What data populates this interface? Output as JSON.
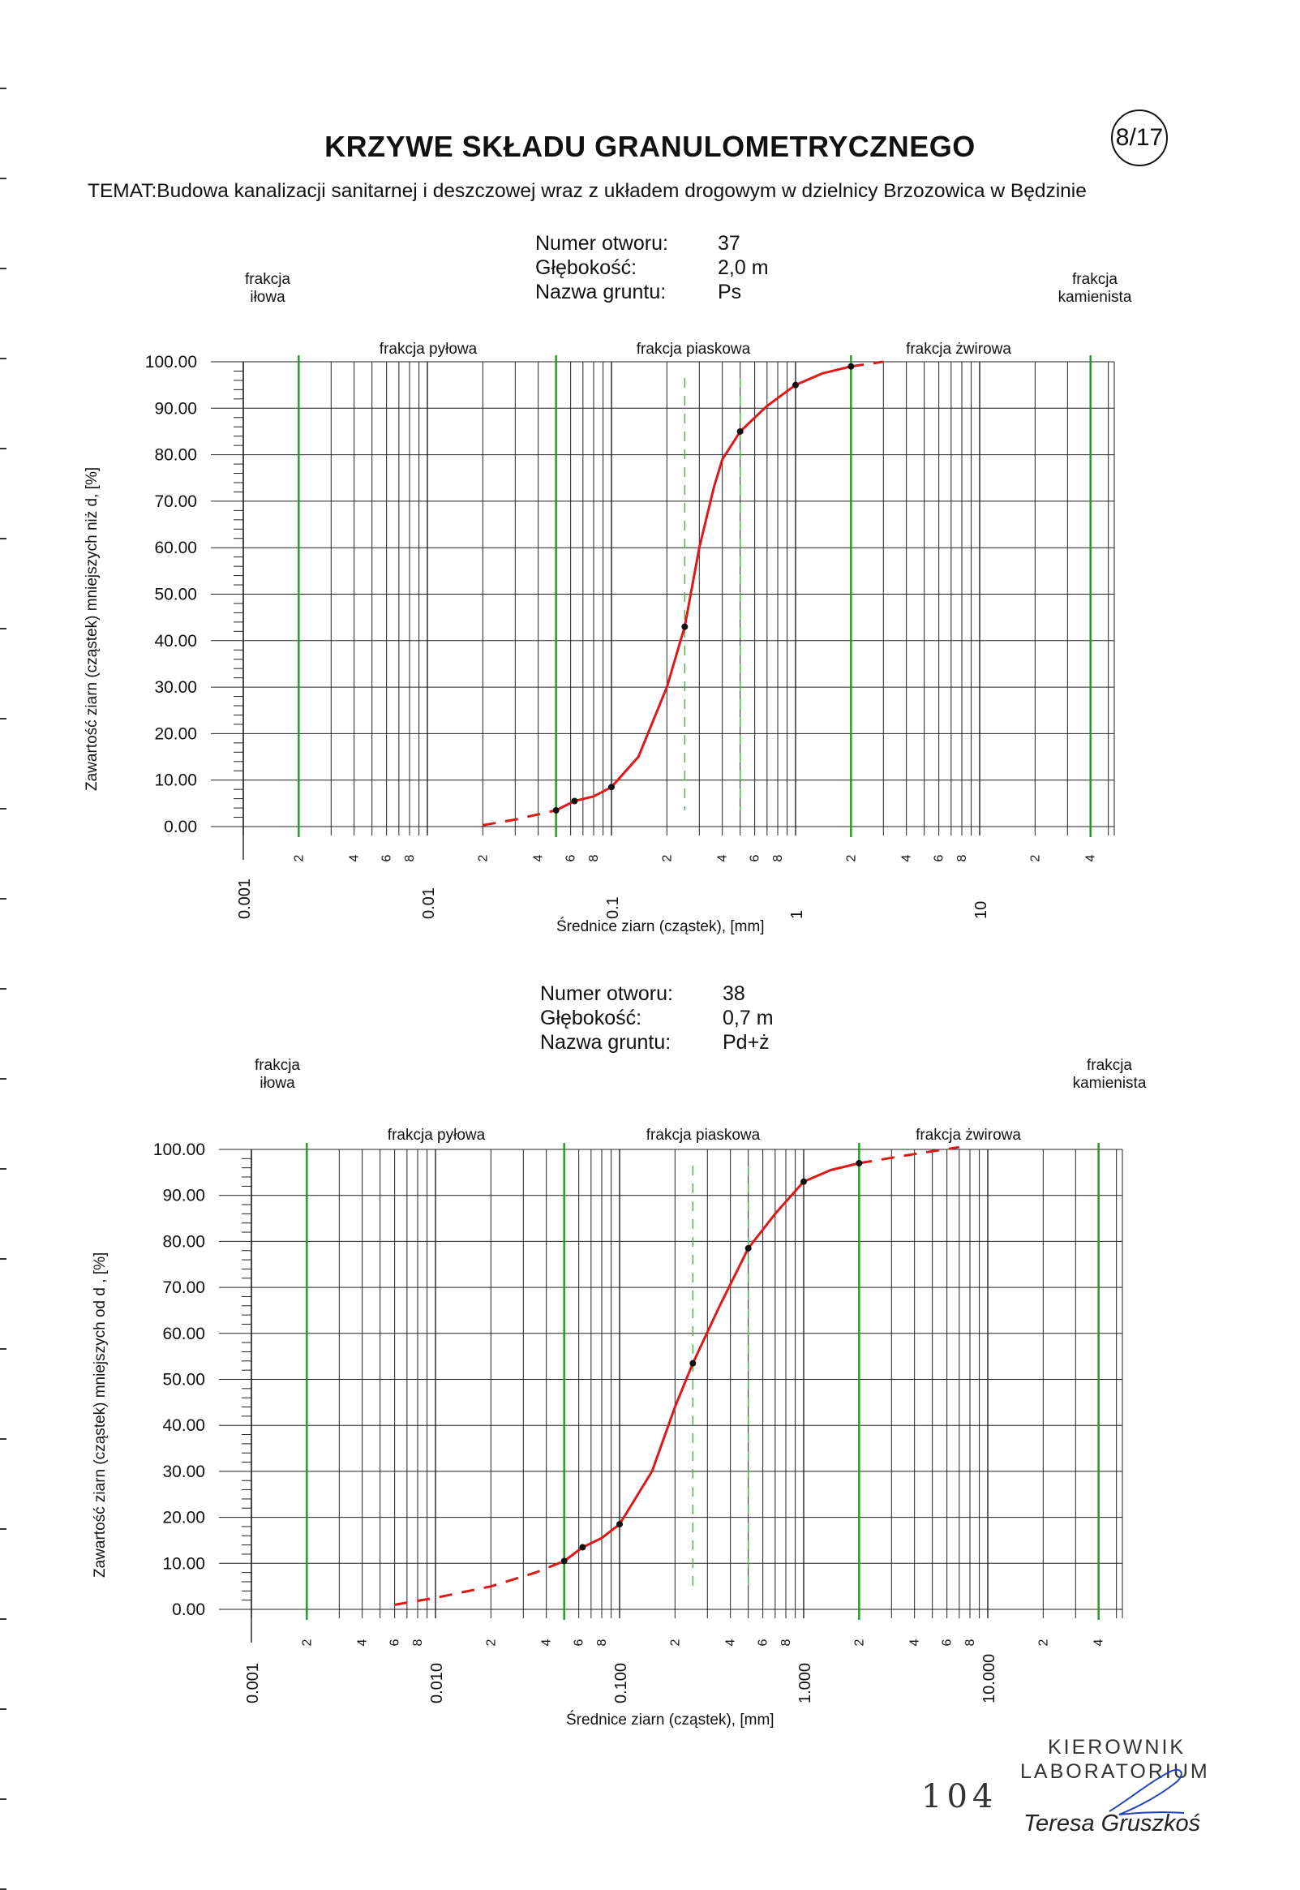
{
  "header": {
    "title": "KRZYWE SKŁADU GRANULOMETRYCZNEGO",
    "page_badge": "8/17",
    "subject": "TEMAT:Budowa kanalizacji sanitarnej i deszczowej wraz z układem drogowym w dzielnicy Brzozowica w Będzinie"
  },
  "samples": [
    {
      "meta": {
        "borehole_label": "Numer otworu:",
        "borehole_value": "37",
        "depth_label": "Głębokość:",
        "depth_value": "2,0 m",
        "soil_label": "Nazwa gruntu:",
        "soil_value": "Ps"
      },
      "ylabel": "Zawartość ziarn (cząstek) mniejszych niż d, [%]",
      "xlabel": "Średnice ziarn (cząstek), [mm]",
      "decade_labels": [
        "0.001",
        "0.01",
        "0.1",
        "1",
        "10"
      ],
      "fractions": [
        "frakcja iłowa",
        "frakcja pyłowa",
        "frakcja piaskowa",
        "frakcja żwirowa",
        "frakcja kamienista"
      ]
    },
    {
      "meta": {
        "borehole_label": "Numer otworu:",
        "borehole_value": "38",
        "depth_label": "Głębokość:",
        "depth_value": "0,7 m",
        "soil_label": "Nazwa gruntu:",
        "soil_value": "Pd+ż"
      },
      "ylabel": "Zawartość ziarn (cząstek) mniejszych od d , [%]",
      "xlabel": "Średnice ziarn (cząstek), [mm]",
      "decade_labels": [
        "0.001",
        "0.010",
        "0.100",
        "1.000",
        "10.000"
      ],
      "fractions": [
        "frakcja iłowa",
        "frakcja pyłowa",
        "frakcja piaskowa",
        "frakcja żwirowa",
        "frakcja kamienista"
      ]
    }
  ],
  "chart_data": [
    {
      "type": "line",
      "title": "",
      "xlabel": "Średnice ziarn (cząstek), [mm]",
      "ylabel": "Zawartość ziarn (cząstek) mniejszych niż d, [%]",
      "x_scale": "log",
      "xlim": [
        0.001,
        50
      ],
      "ylim": [
        0,
        100
      ],
      "yticks": [
        "0.00",
        "10.00",
        "20.00",
        "30.00",
        "40.00",
        "50.00",
        "60.00",
        "70.00",
        "80.00",
        "90.00",
        "100.00"
      ],
      "minor_tick_labels": [
        "2",
        "4",
        "6",
        "8"
      ],
      "grid": true,
      "fraction_boundaries_mm": [
        0.002,
        0.05,
        2,
        40
      ],
      "sand_subdivisions_mm": [
        0.25,
        0.5
      ],
      "series": [
        {
          "points": [
            [
              0.05,
              3.5
            ],
            [
              0.063,
              5.5
            ],
            [
              0.1,
              8.5
            ],
            [
              0.25,
              43
            ],
            [
              0.5,
              85
            ],
            [
              1,
              95
            ],
            [
              2,
              99
            ]
          ],
          "curve": [
            [
              0.02,
              0.3
            ],
            [
              0.03,
              1.5
            ],
            [
              0.05,
              3.5
            ],
            [
              0.063,
              5.5
            ],
            [
              0.08,
              6.5
            ],
            [
              0.1,
              8.5
            ],
            [
              0.14,
              15
            ],
            [
              0.2,
              30
            ],
            [
              0.25,
              43
            ],
            [
              0.3,
              60
            ],
            [
              0.36,
              73
            ],
            [
              0.4,
              79
            ],
            [
              0.5,
              85
            ],
            [
              0.7,
              90.5
            ],
            [
              1,
              95
            ],
            [
              1.4,
              97.5
            ],
            [
              2,
              99
            ],
            [
              3,
              100
            ]
          ],
          "dashed_below_mm": 0.05,
          "dashed_above_mm": 2
        }
      ]
    },
    {
      "type": "line",
      "title": "",
      "xlabel": "Średnice ziarn (cząstek), [mm]",
      "ylabel": "Zawartość ziarn (cząstek) mniejszych od d , [%]",
      "x_scale": "log",
      "xlim": [
        0.001,
        50
      ],
      "ylim": [
        0,
        100
      ],
      "yticks": [
        "0.00",
        "10.00",
        "20.00",
        "30.00",
        "40.00",
        "50.00",
        "60.00",
        "70.00",
        "80.00",
        "90.00",
        "100.00"
      ],
      "minor_tick_labels": [
        "2",
        "4",
        "6",
        "8"
      ],
      "grid": true,
      "fraction_boundaries_mm": [
        0.002,
        0.05,
        2,
        40
      ],
      "sand_subdivisions_mm": [
        0.25,
        0.5
      ],
      "series": [
        {
          "points": [
            [
              0.05,
              10.5
            ],
            [
              0.063,
              13.5
            ],
            [
              0.1,
              18.5
            ],
            [
              0.25,
              53.5
            ],
            [
              0.5,
              78.5
            ],
            [
              1,
              93
            ],
            [
              2,
              97
            ]
          ],
          "curve": [
            [
              0.006,
              1
            ],
            [
              0.01,
              2.5
            ],
            [
              0.02,
              5
            ],
            [
              0.035,
              8
            ],
            [
              0.05,
              10.5
            ],
            [
              0.063,
              13.5
            ],
            [
              0.08,
              15.5
            ],
            [
              0.1,
              18.5
            ],
            [
              0.15,
              30
            ],
            [
              0.2,
              44
            ],
            [
              0.25,
              53.5
            ],
            [
              0.35,
              66
            ],
            [
              0.5,
              78.5
            ],
            [
              0.7,
              86
            ],
            [
              1,
              93
            ],
            [
              1.4,
              95.5
            ],
            [
              2,
              97
            ],
            [
              4,
              99
            ],
            [
              7,
              100.5
            ]
          ],
          "dashed_below_mm": 0.05,
          "dashed_above_mm": 2
        }
      ]
    }
  ],
  "footer": {
    "lab_title_1": "KIEROWNIK",
    "lab_title_2": "LABORATORIUM",
    "signature_name": "Teresa Gruszkoś",
    "page_number": "104"
  },
  "colors": {
    "curve": "#e01818",
    "boundary": "#1e9a1e",
    "grid": "#222222",
    "subdivision": "#3fb83f"
  }
}
